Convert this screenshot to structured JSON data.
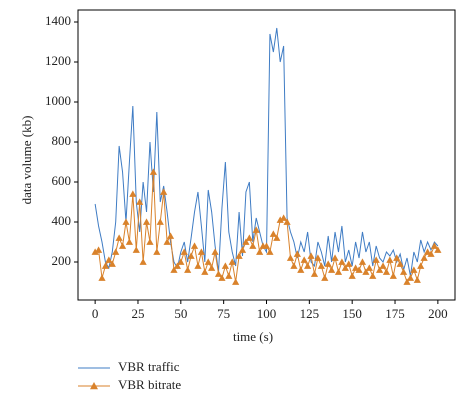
{
  "chart_data": {
    "type": "line",
    "xlabel": "time (s)",
    "ylabel": "data volume (kb)",
    "x": [
      0,
      2,
      4,
      6,
      8,
      10,
      12,
      14,
      16,
      18,
      20,
      22,
      24,
      26,
      28,
      30,
      32,
      34,
      36,
      38,
      40,
      42,
      44,
      46,
      48,
      50,
      52,
      54,
      56,
      58,
      60,
      62,
      64,
      66,
      68,
      70,
      72,
      74,
      76,
      78,
      80,
      82,
      84,
      86,
      88,
      90,
      92,
      94,
      96,
      98,
      100,
      102,
      104,
      106,
      108,
      110,
      112,
      114,
      116,
      118,
      120,
      122,
      124,
      126,
      128,
      130,
      132,
      134,
      136,
      138,
      140,
      142,
      144,
      146,
      148,
      150,
      152,
      154,
      156,
      158,
      160,
      162,
      164,
      166,
      168,
      170,
      172,
      174,
      176,
      178,
      180,
      182,
      184,
      186,
      188,
      190,
      192,
      194,
      196,
      198,
      200
    ],
    "series": [
      {
        "name": "VBR traffic",
        "color": "#3f7cc4",
        "marker": "none",
        "values": [
          490,
          380,
          300,
          200,
          170,
          250,
          400,
          780,
          650,
          400,
          700,
          980,
          500,
          350,
          600,
          450,
          800,
          550,
          950,
          500,
          580,
          450,
          300,
          200,
          170,
          250,
          300,
          200,
          320,
          450,
          550,
          380,
          200,
          560,
          450,
          280,
          150,
          470,
          700,
          350,
          250,
          180,
          450,
          230,
          550,
          600,
          300,
          420,
          350,
          280,
          250,
          1340,
          1250,
          1370,
          1200,
          1280,
          420,
          350,
          300,
          220,
          300,
          250,
          350,
          200,
          180,
          300,
          250,
          180,
          330,
          200,
          350,
          250,
          380,
          200,
          260,
          180,
          300,
          220,
          350,
          250,
          300,
          180,
          280,
          220,
          200,
          250,
          230,
          260,
          200,
          240,
          160,
          220,
          130,
          250,
          200,
          310,
          250,
          300,
          260,
          300,
          280
        ]
      },
      {
        "name": "VBR bitrate",
        "color": "#d9822b",
        "marker": "triangle",
        "values": [
          250,
          260,
          120,
          180,
          210,
          190,
          250,
          320,
          280,
          400,
          300,
          540,
          260,
          500,
          200,
          400,
          300,
          650,
          250,
          400,
          550,
          300,
          330,
          160,
          180,
          200,
          250,
          160,
          230,
          280,
          180,
          250,
          150,
          200,
          170,
          250,
          140,
          120,
          180,
          130,
          200,
          100,
          230,
          260,
          300,
          320,
          280,
          360,
          250,
          280,
          280,
          250,
          340,
          320,
          410,
          420,
          400,
          220,
          180,
          240,
          160,
          210,
          180,
          230,
          140,
          220,
          180,
          120,
          190,
          160,
          220,
          150,
          200,
          170,
          190,
          130,
          170,
          160,
          200,
          150,
          170,
          130,
          210,
          160,
          180,
          150,
          210,
          130,
          220,
          190,
          150,
          100,
          120,
          160,
          110,
          180,
          220,
          250,
          240,
          280,
          260
        ]
      }
    ],
    "xlim": [
      -10,
      210
    ],
    "xticks": [
      0,
      25,
      50,
      75,
      100,
      125,
      150,
      175,
      200
    ],
    "ylim": [
      10,
      1460
    ],
    "yticks": [
      200,
      400,
      600,
      800,
      1000,
      1200,
      1400
    ],
    "grid": false,
    "legend": "bottom"
  }
}
